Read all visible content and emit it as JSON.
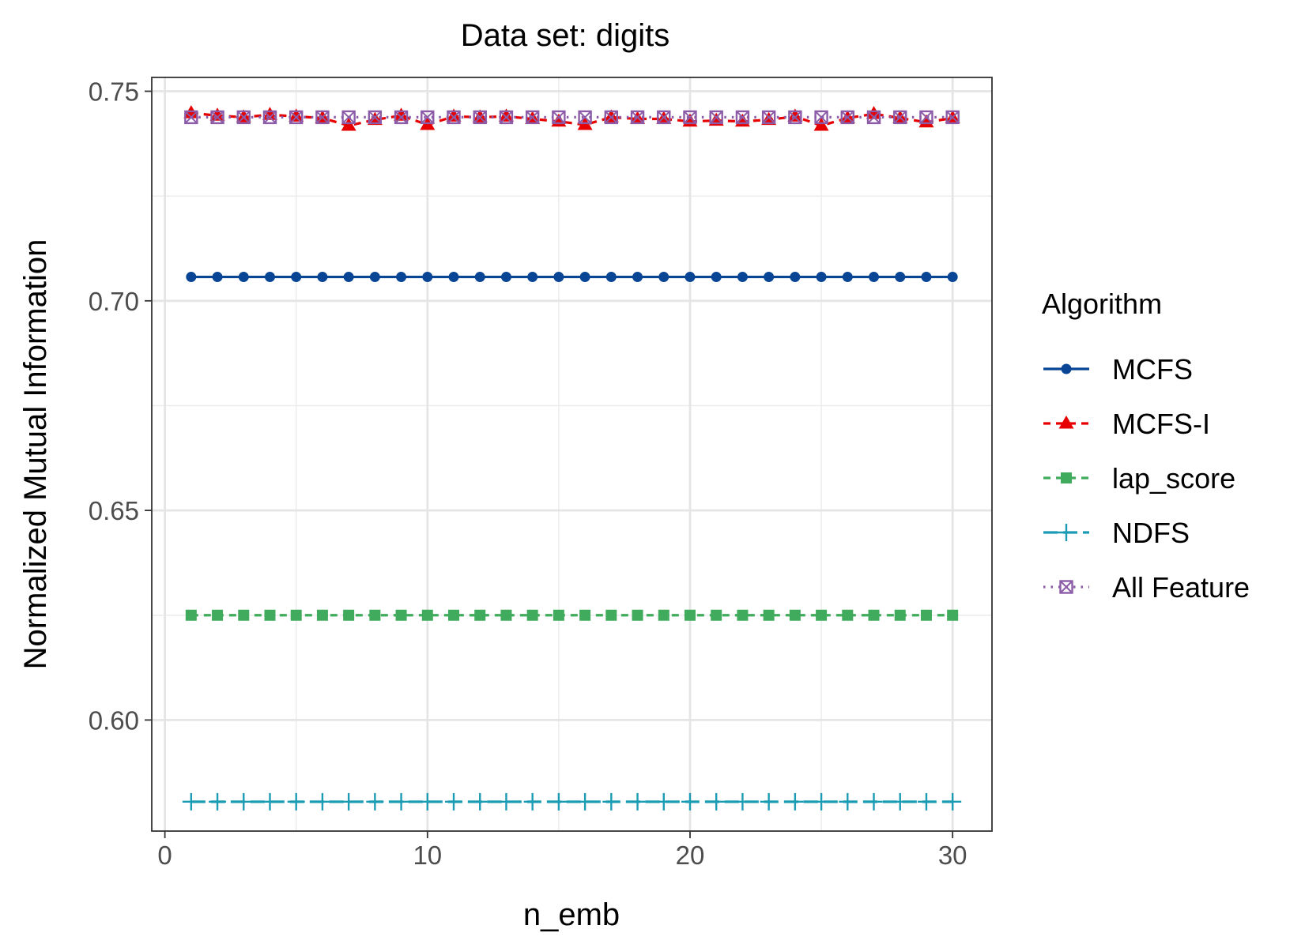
{
  "chart_data": {
    "type": "line",
    "title": "Data set: digits",
    "xlabel": "n_emb",
    "ylabel": "Normalized Mutual Information",
    "xlim": [
      -0.5,
      31.5
    ],
    "ylim": [
      0.5735,
      0.7533
    ],
    "x_ticks": [
      0,
      10,
      20,
      30
    ],
    "x_tick_labels": [
      "0",
      "10",
      "20",
      "30"
    ],
    "y_ticks": [
      0.6,
      0.65,
      0.7,
      0.75
    ],
    "y_tick_labels": [
      "0.60",
      "0.65",
      "0.70",
      "0.75"
    ],
    "grid": true,
    "legend_title": "Algorithm",
    "legend_position": "right",
    "x": [
      1,
      2,
      3,
      4,
      5,
      6,
      7,
      8,
      9,
      10,
      11,
      12,
      13,
      14,
      15,
      16,
      17,
      18,
      19,
      20,
      21,
      22,
      23,
      24,
      25,
      26,
      27,
      28,
      29,
      30
    ],
    "series": [
      {
        "name": "MCFS",
        "color": "#084594",
        "marker": "circle",
        "line": "solid",
        "values": [
          0.7057,
          0.7057,
          0.7057,
          0.7057,
          0.7057,
          0.7057,
          0.7057,
          0.7057,
          0.7057,
          0.7057,
          0.7057,
          0.7057,
          0.7057,
          0.7057,
          0.7057,
          0.7057,
          0.7057,
          0.7057,
          0.7057,
          0.7057,
          0.7057,
          0.7057,
          0.7057,
          0.7057,
          0.7057,
          0.7057,
          0.7057,
          0.7057,
          0.7057,
          0.7057
        ]
      },
      {
        "name": "MCFS-I",
        "color": "#e60000",
        "marker": "triangle",
        "line": "dashed",
        "values": [
          0.7448,
          0.7442,
          0.7438,
          0.7444,
          0.744,
          0.7436,
          0.7418,
          0.7432,
          0.7442,
          0.742,
          0.744,
          0.7438,
          0.744,
          0.7434,
          0.7428,
          0.742,
          0.7438,
          0.7434,
          0.7434,
          0.7428,
          0.743,
          0.7428,
          0.7432,
          0.744,
          0.7418,
          0.7436,
          0.7446,
          0.7436,
          0.7426,
          0.7436
        ]
      },
      {
        "name": "lap_score",
        "color": "#41ab5d",
        "marker": "square",
        "line": "dashed",
        "values": [
          0.625,
          0.625,
          0.625,
          0.625,
          0.625,
          0.625,
          0.625,
          0.625,
          0.625,
          0.625,
          0.625,
          0.625,
          0.625,
          0.625,
          0.625,
          0.625,
          0.625,
          0.625,
          0.625,
          0.625,
          0.625,
          0.625,
          0.625,
          0.625,
          0.625,
          0.625,
          0.625,
          0.625,
          0.625,
          0.625
        ]
      },
      {
        "name": "NDFS",
        "color": "#1c9bb5",
        "marker": "plus",
        "line": "longdash",
        "values": [
          0.5805,
          0.5805,
          0.5805,
          0.5805,
          0.5805,
          0.5805,
          0.5805,
          0.5805,
          0.5805,
          0.5805,
          0.5805,
          0.5805,
          0.5805,
          0.5805,
          0.5805,
          0.5805,
          0.5805,
          0.5805,
          0.5805,
          0.5805,
          0.5805,
          0.5805,
          0.5805,
          0.5805,
          0.5805,
          0.5805,
          0.5805,
          0.5805,
          0.5805,
          0.5805
        ]
      },
      {
        "name": "All Feature",
        "color": "#8c5ca8",
        "marker": "square-cross",
        "line": "dotted",
        "values": [
          0.7438,
          0.7438,
          0.7438,
          0.7438,
          0.7438,
          0.7438,
          0.7438,
          0.7438,
          0.7438,
          0.7438,
          0.7438,
          0.7438,
          0.7438,
          0.7438,
          0.7438,
          0.7438,
          0.7438,
          0.7438,
          0.7438,
          0.7438,
          0.7438,
          0.7438,
          0.7438,
          0.7438,
          0.7438,
          0.7438,
          0.7438,
          0.7438,
          0.7438,
          0.7438
        ]
      }
    ]
  }
}
